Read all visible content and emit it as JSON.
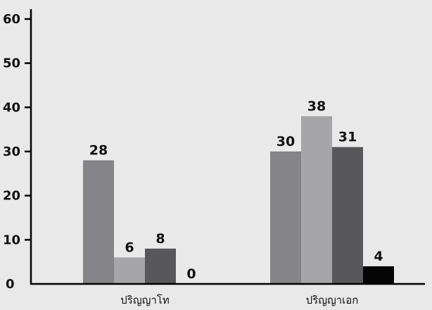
{
  "chart_data": {
    "type": "bar",
    "categories": [
      "ปริญญาโท",
      "ปริญญาเอก"
    ],
    "series": [
      {
        "values": [
          28,
          30
        ],
        "color": "#848489"
      },
      {
        "values": [
          6,
          38
        ],
        "color": "#a6a6a9"
      },
      {
        "values": [
          8,
          31
        ],
        "color": "#58585a"
      },
      {
        "values": [
          0,
          4
        ],
        "color": "#050505"
      }
    ],
    "ylim": [
      0,
      60
    ],
    "yticks": [
      0,
      10,
      20,
      30,
      40,
      50,
      60
    ],
    "title": "",
    "xlabel": "",
    "ylabel": "",
    "grid": false,
    "legend": "none"
  }
}
